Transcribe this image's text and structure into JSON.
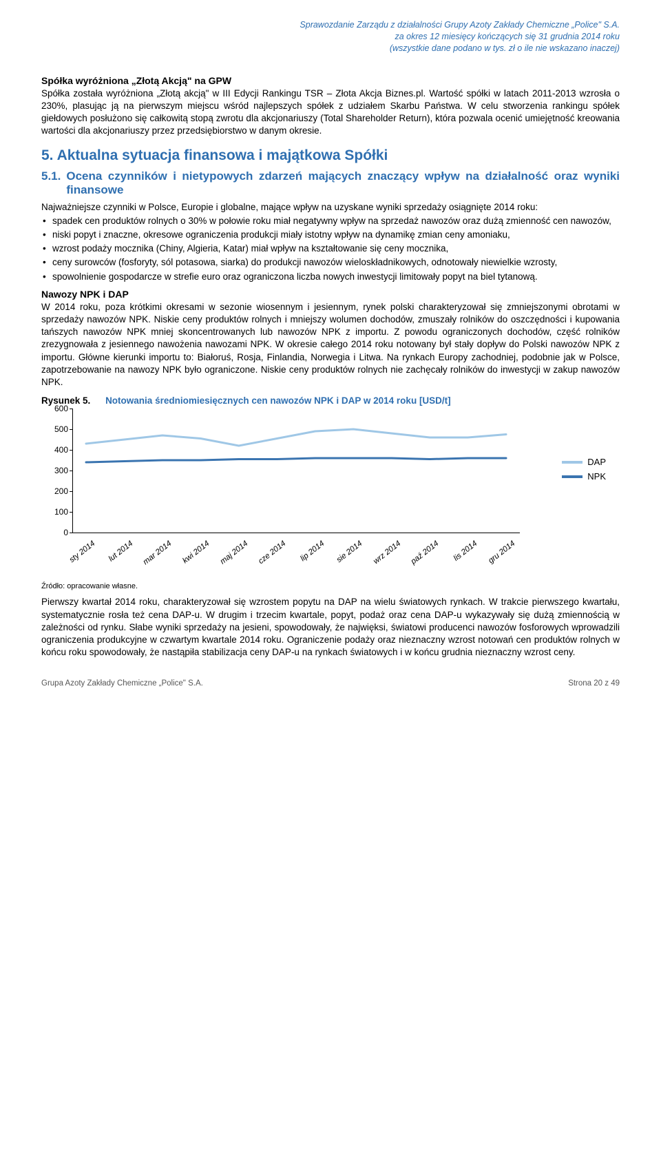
{
  "header": {
    "line1": "Sprawozdanie Zarządu z działalności Grupy Azoty Zakłady Chemiczne „Police\" S.A.",
    "line2": "za okres 12 miesięcy kończących się 31 grudnia 2014 roku",
    "line3": "(wszystkie dane podano w tys. zł o ile nie wskazano inaczej)"
  },
  "section_gpw": {
    "heading": "Spółka wyróżniona „Złotą Akcją\" na GPW",
    "text": "Spółka została wyróżniona „Złotą akcją\" w III Edycji Rankingu TSR – Złota Akcja Biznes.pl. Wartość spółki w latach 2011-2013 wzrosła o 230%, plasując ją na pierwszym miejscu wśród najlepszych spółek z udziałem Skarbu Państwa. W celu stworzenia rankingu spółek giełdowych posłużono się całkowitą stopą zwrotu dla akcjonariuszy (Total Shareholder Return), która pozwala ocenić umiejętność kreowania wartości dla akcjonariuszy przez przedsiębiorstwo w danym okresie."
  },
  "h5": {
    "num": "5.",
    "title": "Aktualna sytuacja finansowa i majątkowa Spółki"
  },
  "h51": {
    "num": "5.1.",
    "title": "Ocena czynników i nietypowych zdarzeń mających znaczący wpływ na działalność oraz wyniki finansowe"
  },
  "intro51": "Najważniejsze czynniki w Polsce, Europie i globalne, mające wpływ na uzyskane wyniki sprzedaży osiągnięte 2014 roku:",
  "bullets51": [
    "spadek cen produktów rolnych o 30% w połowie roku miał negatywny wpływ na sprzedaż nawozów oraz dużą zmienność cen nawozów,",
    "niski popyt i znaczne, okresowe ograniczenia produkcji miały istotny wpływ na dynamikę zmian ceny amoniaku,",
    "wzrost podaży mocznika (Chiny, Algieria, Katar) miał wpływ na kształtowanie się ceny mocznika,",
    "ceny surowców (fosforyty, sól potasowa, siarka) do produkcji nawozów wieloskładnikowych, odnotowały niewielkie wzrosty,",
    "spowolnienie gospodarcze w strefie euro oraz ograniczona liczba nowych inwestycji limitowały popyt na biel tytanową."
  ],
  "npk": {
    "heading": "Nawozy NPK i DAP",
    "text": "W 2014 roku, poza krótkimi okresami w sezonie wiosennym i jesiennym, rynek polski charakteryzował się zmniejszonymi obrotami w sprzedaży nawozów NPK. Niskie ceny produktów rolnych i mniejszy wolumen dochodów, zmuszały rolników do oszczędności i kupowania tańszych nawozów NPK mniej skoncentrowanych lub nawozów NPK z importu. Z powodu ograniczonych dochodów, część rolników zrezygnowała z jesiennego nawożenia nawozami NPK. W okresie całego 2014 roku notowany był stały dopływ do Polski nawozów NPK z importu. Główne kierunki importu to: Białoruś, Rosja, Finlandia, Norwegia i Litwa. Na rynkach Europy zachodniej, podobnie jak w Polsce, zapotrzebowanie na nawozy NPK było ograniczone. Niskie ceny produktów rolnych nie zachęcały rolników do inwestycji w zakup nawozów NPK."
  },
  "figure5": {
    "label": "Rysunek 5.",
    "title": "Notowania średniomiesięcznych cen nawozów NPK i DAP w 2014 roku [USD/t]"
  },
  "chart": {
    "type": "line",
    "ylim": [
      0,
      600
    ],
    "ytick_step": 100,
    "yticks": [
      0,
      100,
      200,
      300,
      400,
      500,
      600
    ],
    "categories": [
      "sty 2014",
      "lut 2014",
      "mar 2014",
      "kwi 2014",
      "maj 2014",
      "cze 2014",
      "lip 2014",
      "sie 2014",
      "wrz 2014",
      "paź 2014",
      "lis 2014",
      "gru 2014"
    ],
    "series": {
      "DAP": {
        "label": "DAP",
        "color": "#9fc7e6",
        "width": 3,
        "values": [
          430,
          450,
          470,
          455,
          420,
          455,
          490,
          500,
          480,
          460,
          460,
          475
        ]
      },
      "NPK": {
        "label": "NPK",
        "color": "#3a74b0",
        "width": 3,
        "values": [
          340,
          345,
          350,
          350,
          355,
          355,
          360,
          360,
          360,
          355,
          360,
          360
        ]
      }
    },
    "background_color": "#ffffff",
    "axis_color": "#000000",
    "label_fontsize": 12
  },
  "source": "Źródło: opracowanie własne.",
  "para_after_chart": "Pierwszy kwartał 2014 roku, charakteryzował się wzrostem popytu na DAP na wielu światowych rynkach. W trakcie pierwszego kwartału, systematycznie rosła też cena DAP-u. W drugim i trzecim kwartale, popyt, podaż oraz cena DAP-u wykazywały się dużą zmiennością w zależności od rynku. Słabe wyniki sprzedaży na jesieni, spowodowały, że najwięksi, światowi producenci nawozów fosforowych wprowadzili ograniczenia produkcyjne w czwartym kwartale 2014 roku. Ograniczenie podaży oraz nieznaczny wzrost notowań cen produktów rolnych w końcu roku spowodowały, że nastąpiła stabilizacja ceny DAP-u na rynkach światowych i w końcu grudnia nieznaczny wzrost ceny.",
  "footer": {
    "left": "Grupa Azoty Zakłady Chemiczne „Police\" S.A.",
    "right": "Strona 20 z 49"
  }
}
